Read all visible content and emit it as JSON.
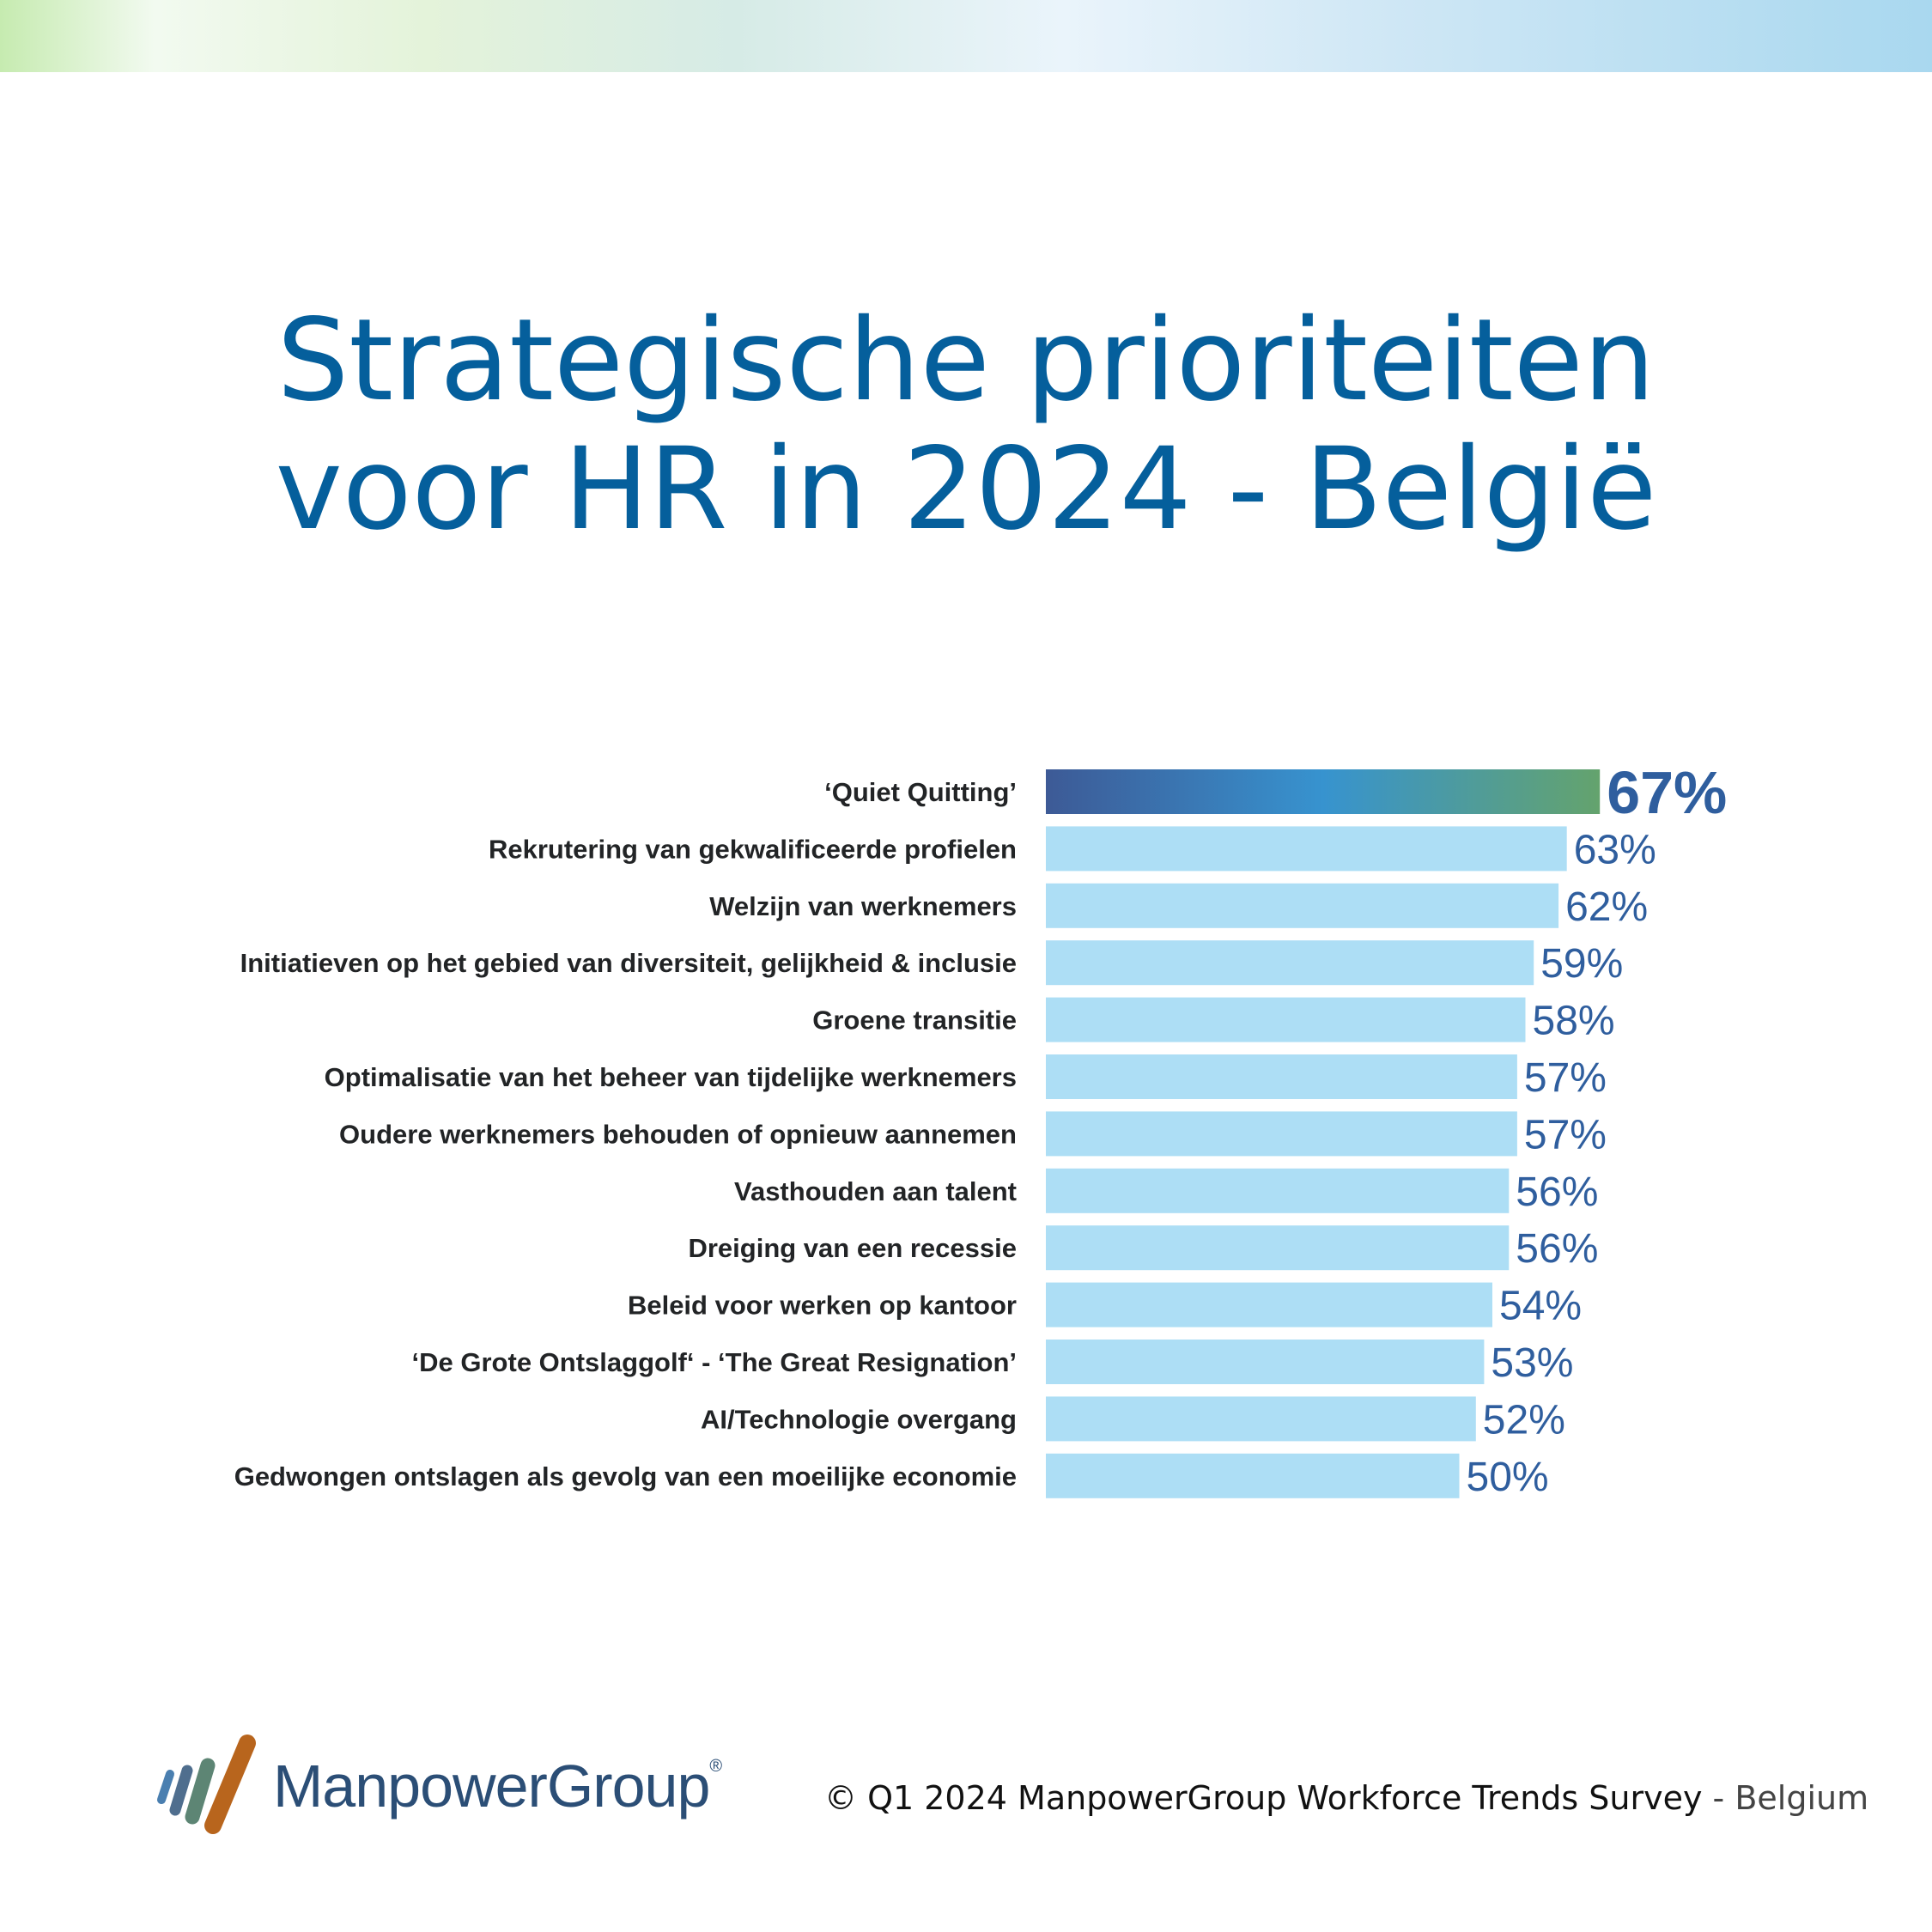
{
  "title": {
    "line1": "Strategische prioriteiten",
    "line2": "voor HR in 2024 - België"
  },
  "chart_data": {
    "type": "bar",
    "orientation": "horizontal",
    "categories": [
      "‘Quiet Quitting’",
      "Rekrutering van gekwalificeerde profielen",
      "Welzijn van werknemers",
      "Initiatieven op het gebied van diversiteit, gelijkheid & inclusie",
      "Groene transitie",
      "Optimalisatie van het beheer van tijdelijke werknemers",
      "Oudere werknemers behouden of opnieuw aannemen",
      "Vasthouden aan talent",
      "Dreiging van een recessie",
      "Beleid voor werken op kantoor",
      "‘De Grote Ontslaggolf‘ -  ‘The Great Resignation’",
      "AI/Technologie overgang",
      "Gedwongen ontslagen als gevolg van een moeilijke economie"
    ],
    "values": [
      67,
      63,
      62,
      59,
      58,
      57,
      57,
      56,
      56,
      54,
      53,
      52,
      50
    ],
    "value_labels": [
      "67%",
      "63%",
      "62%",
      "59%",
      "58%",
      "57%",
      "57%",
      "56%",
      "56%",
      "54%",
      "53%",
      "52%",
      "50%"
    ],
    "highlight_index": 0,
    "xlim": [
      0,
      100
    ],
    "grid": false,
    "colors": {
      "bar": "#addef5",
      "highlight_start": "#3d5a96",
      "highlight_mid": "#3793cf",
      "highlight_end": "#64a36d",
      "value_text": "#2f5e9e",
      "label_text": "#222426"
    }
  },
  "logo": {
    "text": "ManpowerGroup",
    "mark": "®"
  },
  "footer": {
    "source": "© Q1 2024 ManpowerGroup Workforce Trends Survey",
    "country": " - Belgium"
  }
}
